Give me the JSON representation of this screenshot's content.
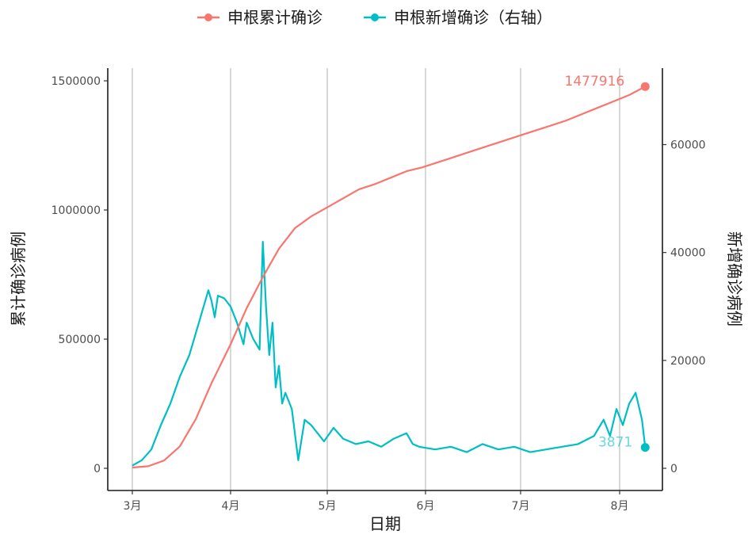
{
  "chart_data": {
    "type": "line",
    "xlabel": "日期",
    "ylabel": "累计确诊病例",
    "y2label": "新增确诊病例",
    "x_ticks": [
      "3月",
      "4月",
      "5月",
      "6月",
      "7月",
      "8月"
    ],
    "y_ticks": [
      "0",
      "500000",
      "1000000",
      "1500000"
    ],
    "y2_ticks": [
      "0",
      "20000",
      "40000",
      "60000"
    ],
    "ylim": [
      -80000,
      1580000
    ],
    "y2lim": [
      -3800,
      73500
    ],
    "grid": "vertical major only",
    "legend_position": "top",
    "series": [
      {
        "name": "申根累计确诊",
        "axis": "left",
        "color": "#F8766D",
        "end_label": "1477916",
        "x_days": [
          0,
          5,
          10,
          15,
          20,
          25,
          31,
          36,
          41,
          46,
          51,
          56,
          61,
          66,
          71,
          76,
          81,
          86,
          91,
          96,
          101,
          106,
          111,
          116,
          121,
          126,
          131,
          136,
          141,
          146,
          151,
          156,
          161
        ],
        "values": [
          3000,
          8000,
          30000,
          85000,
          190000,
          330000,
          480000,
          620000,
          740000,
          850000,
          930000,
          975000,
          1010000,
          1045000,
          1080000,
          1100000,
          1125000,
          1150000,
          1165000,
          1185000,
          1205000,
          1225000,
          1245000,
          1265000,
          1285000,
          1305000,
          1325000,
          1345000,
          1370000,
          1395000,
          1420000,
          1445000,
          1477916
        ]
      },
      {
        "name": "申根新增确诊（右轴）",
        "axis": "right",
        "color": "#00BFC4",
        "end_label": "3871",
        "x_days": [
          0,
          3,
          6,
          9,
          12,
          15,
          18,
          20,
          22,
          24,
          25,
          26,
          27,
          29,
          31,
          33,
          35,
          36,
          38,
          40,
          41,
          42,
          43,
          44,
          45,
          46,
          47,
          48,
          50,
          52,
          54,
          56,
          58,
          60,
          63,
          66,
          70,
          74,
          78,
          82,
          86,
          88,
          90,
          95,
          100,
          105,
          110,
          115,
          120,
          125,
          130,
          135,
          140,
          145,
          148,
          150,
          152,
          154,
          156,
          158,
          160,
          161
        ],
        "values": [
          500,
          1500,
          3500,
          8000,
          12000,
          17000,
          21000,
          25000,
          29000,
          33000,
          31000,
          28000,
          32000,
          31500,
          30000,
          27000,
          23000,
          27000,
          24000,
          22000,
          42000,
          30000,
          21000,
          27000,
          15000,
          19000,
          12000,
          14000,
          11000,
          1500,
          9000,
          8000,
          6500,
          5000,
          7500,
          5500,
          4500,
          5000,
          4000,
          5500,
          6500,
          4500,
          4000,
          3500,
          4000,
          3000,
          4500,
          3500,
          4000,
          3000,
          3500,
          4000,
          4500,
          6000,
          9000,
          6000,
          11000,
          8000,
          12000,
          14000,
          9000,
          3871
        ]
      }
    ]
  }
}
